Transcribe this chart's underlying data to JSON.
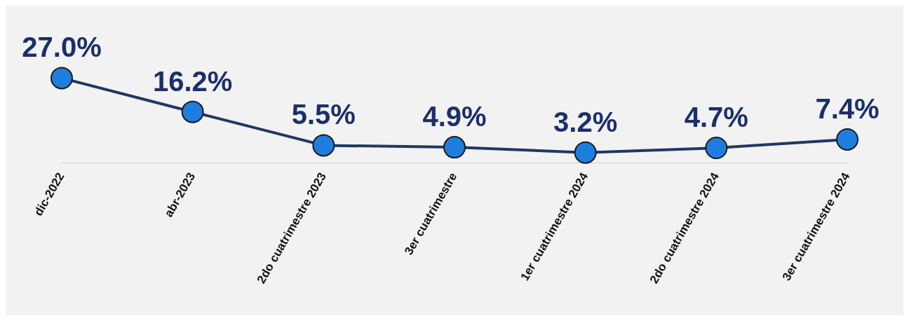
{
  "chart_data": {
    "type": "line",
    "categories": [
      "dic-2022",
      "abr-2023",
      "2do cuatrimestre 2023",
      "3er cuatrimestre",
      "1er cuatrimestre 2024",
      "2do cuatrimestre 2024",
      "3er cuatrimestre 2024"
    ],
    "series": [
      {
        "color": "#1f3864",
        "values": [
          27.0,
          16.2,
          5.5,
          4.9,
          3.2,
          4.7,
          7.4
        ],
        "value_labels": [
          "27.0%",
          "16.2%",
          "5.5%",
          "4.9%",
          "3.2%",
          "4.7%",
          "7.4%"
        ]
      }
    ],
    "marker": "circle",
    "line_style": "solid",
    "grid": false,
    "legend": false,
    "tick_labels": "x"
  }
}
